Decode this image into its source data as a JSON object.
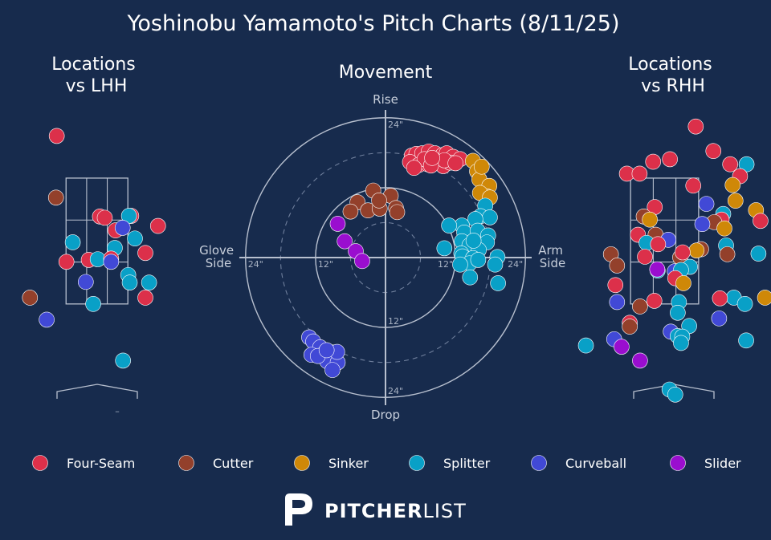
{
  "title": "Yoshinobu Yamamoto's Pitch Charts (8/11/25)",
  "brand": {
    "bold": "PITCHER",
    "light": "LIST"
  },
  "colors": {
    "background": "#172b4d",
    "Four-Seam": "#dc304a",
    "Cutter": "#93402b",
    "Sinker": "#cf8808",
    "Splitter": "#09a0c7",
    "Curveball": "#4149d6",
    "Slider": "#9a0ecf"
  },
  "chart_data": [
    {
      "type": "scatter",
      "title": "Locations\nvs LHH",
      "xlim": [
        -2,
        2.4
      ],
      "ylim": [
        -0.3,
        4.8
      ],
      "zone": {
        "x": [
          -0.83,
          0.83
        ],
        "y": [
          1.5,
          3.5
        ]
      },
      "home_plate_marker": "–",
      "points": [
        {
          "pitch": "Four-Seam",
          "x": -1.08,
          "y": 4.17
        },
        {
          "pitch": "Cutter",
          "x": -1.1,
          "y": 3.19
        },
        {
          "pitch": "Four-Seam",
          "x": 0.08,
          "y": 2.89
        },
        {
          "pitch": "Four-Seam",
          "x": 0.21,
          "y": 2.87
        },
        {
          "pitch": "Four-Seam",
          "x": 0.92,
          "y": 2.9
        },
        {
          "pitch": "Splitter",
          "x": 0.86,
          "y": 2.9
        },
        {
          "pitch": "Four-Seam",
          "x": 1.64,
          "y": 2.74
        },
        {
          "pitch": "Four-Seam",
          "x": 0.5,
          "y": 2.67
        },
        {
          "pitch": "Curveball",
          "x": 0.69,
          "y": 2.71
        },
        {
          "pitch": "Splitter",
          "x": -0.65,
          "y": 2.48
        },
        {
          "pitch": "Splitter",
          "x": 1.02,
          "y": 2.54
        },
        {
          "pitch": "Splitter",
          "x": 0.48,
          "y": 2.39
        },
        {
          "pitch": "Four-Seam",
          "x": 1.3,
          "y": 2.31
        },
        {
          "pitch": "Four-Seam",
          "x": -0.82,
          "y": 2.17
        },
        {
          "pitch": "Four-Seam",
          "x": -0.22,
          "y": 2.2
        },
        {
          "pitch": "Splitter",
          "x": 0.02,
          "y": 2.21
        },
        {
          "pitch": "Four-Seam",
          "x": 0.38,
          "y": 2.22
        },
        {
          "pitch": "Curveball",
          "x": 0.38,
          "y": 2.17
        },
        {
          "pitch": "Splitter",
          "x": 0.84,
          "y": 1.96
        },
        {
          "pitch": "Splitter",
          "x": 1.4,
          "y": 1.84
        },
        {
          "pitch": "Curveball",
          "x": -0.3,
          "y": 1.85
        },
        {
          "pitch": "Splitter",
          "x": 0.88,
          "y": 1.84
        },
        {
          "pitch": "Cutter",
          "x": -1.8,
          "y": 1.6
        },
        {
          "pitch": "Four-Seam",
          "x": 1.3,
          "y": 1.6
        },
        {
          "pitch": "Splitter",
          "x": -0.1,
          "y": 1.5
        },
        {
          "pitch": "Curveball",
          "x": -1.35,
          "y": 1.25
        },
        {
          "pitch": "Splitter",
          "x": 0.7,
          "y": 0.6
        }
      ]
    },
    {
      "type": "scatter",
      "title": "Movement",
      "x_axis_labels": {
        "left": "Glove\nSide",
        "right": "Arm\nSide"
      },
      "y_axis_labels": {
        "top": "Rise",
        "bottom": "Drop"
      },
      "units": "inches",
      "rings": [
        6,
        12,
        18,
        24
      ],
      "tick_labels": {
        "horizontal": [
          "24\"",
          "12\"",
          "12\"",
          "24\""
        ],
        "vertical": [
          "24\"",
          "12\"",
          "24\""
        ]
      },
      "points": [
        {
          "pitch": "Four-Seam",
          "x": 4.5,
          "y": 17.5
        },
        {
          "pitch": "Four-Seam",
          "x": 5.3,
          "y": 17.8
        },
        {
          "pitch": "Four-Seam",
          "x": 6.3,
          "y": 17.9
        },
        {
          "pitch": "Four-Seam",
          "x": 7.4,
          "y": 18.2
        },
        {
          "pitch": "Four-Seam",
          "x": 8.5,
          "y": 17.9
        },
        {
          "pitch": "Four-Seam",
          "x": 9.8,
          "y": 17.6
        },
        {
          "pitch": "Four-Seam",
          "x": 10.5,
          "y": 17.9
        },
        {
          "pitch": "Four-Seam",
          "x": 11.6,
          "y": 17.3
        },
        {
          "pitch": "Four-Seam",
          "x": 12.8,
          "y": 16.9
        },
        {
          "pitch": "Four-Seam",
          "x": 4.2,
          "y": 16.4
        },
        {
          "pitch": "Four-Seam",
          "x": 5.7,
          "y": 15.9
        },
        {
          "pitch": "Four-Seam",
          "x": 7.3,
          "y": 16.0
        },
        {
          "pitch": "Four-Seam",
          "x": 8.7,
          "y": 16.4
        },
        {
          "pitch": "Four-Seam",
          "x": 9.9,
          "y": 15.7
        },
        {
          "pitch": "Four-Seam",
          "x": 11.1,
          "y": 16.3
        },
        {
          "pitch": "Four-Seam",
          "x": 6.7,
          "y": 16.9
        },
        {
          "pitch": "Four-Seam",
          "x": 10.1,
          "y": 16.7
        },
        {
          "pitch": "Four-Seam",
          "x": 12.0,
          "y": 16.2
        },
        {
          "pitch": "Four-Seam",
          "x": 4.9,
          "y": 15.4
        },
        {
          "pitch": "Four-Seam",
          "x": 7.8,
          "y": 15.8
        },
        {
          "pitch": "Four-Seam",
          "x": 8.0,
          "y": 17.1
        },
        {
          "pitch": "Sinker",
          "x": 15.0,
          "y": 16.6
        },
        {
          "pitch": "Sinker",
          "x": 15.7,
          "y": 14.8
        },
        {
          "pitch": "Sinker",
          "x": 16.1,
          "y": 13.4
        },
        {
          "pitch": "Sinker",
          "x": 16.5,
          "y": 15.6
        },
        {
          "pitch": "Sinker",
          "x": 17.8,
          "y": 12.3
        },
        {
          "pitch": "Sinker",
          "x": 17.4,
          "y": 10.5
        },
        {
          "pitch": "Sinker",
          "x": 16.2,
          "y": 11.1
        },
        {
          "pitch": "Sinker",
          "x": 17.9,
          "y": 10.3
        },
        {
          "pitch": "Cutter",
          "x": -2.1,
          "y": 11.5
        },
        {
          "pitch": "Cutter",
          "x": -4.8,
          "y": 9.5
        },
        {
          "pitch": "Cutter",
          "x": -6.0,
          "y": 7.9
        },
        {
          "pitch": "Cutter",
          "x": -3.0,
          "y": 8.1
        },
        {
          "pitch": "Cutter",
          "x": -1.0,
          "y": 8.4
        },
        {
          "pitch": "Cutter",
          "x": 0.9,
          "y": 10.6
        },
        {
          "pitch": "Cutter",
          "x": 1.8,
          "y": 8.5
        },
        {
          "pitch": "Cutter",
          "x": 2.0,
          "y": 7.8
        },
        {
          "pitch": "Cutter",
          "x": -1.1,
          "y": 9.8
        },
        {
          "pitch": "Splitter",
          "x": 17.1,
          "y": 8.9
        },
        {
          "pitch": "Splitter",
          "x": 16.3,
          "y": 7.1
        },
        {
          "pitch": "Splitter",
          "x": 17.9,
          "y": 6.9
        },
        {
          "pitch": "Splitter",
          "x": 15.4,
          "y": 6.6
        },
        {
          "pitch": "Splitter",
          "x": 13.1,
          "y": 5.5
        },
        {
          "pitch": "Splitter",
          "x": 10.9,
          "y": 5.5
        },
        {
          "pitch": "Splitter",
          "x": 13.5,
          "y": 4.3
        },
        {
          "pitch": "Splitter",
          "x": 15.8,
          "y": 4.6
        },
        {
          "pitch": "Splitter",
          "x": 17.6,
          "y": 3.8
        },
        {
          "pitch": "Splitter",
          "x": 17.4,
          "y": 2.6
        },
        {
          "pitch": "Splitter",
          "x": 13.1,
          "y": 2.8
        },
        {
          "pitch": "Splitter",
          "x": 14.4,
          "y": 2.1
        },
        {
          "pitch": "Splitter",
          "x": 16.0,
          "y": 1.3
        },
        {
          "pitch": "Splitter",
          "x": 10.1,
          "y": 1.6
        },
        {
          "pitch": "Splitter",
          "x": 13.0,
          "y": 0.7
        },
        {
          "pitch": "Splitter",
          "x": 13.2,
          "y": 0.2
        },
        {
          "pitch": "Splitter",
          "x": 15.0,
          "y": -0.1
        },
        {
          "pitch": "Splitter",
          "x": 19.2,
          "y": 0.1
        },
        {
          "pitch": "Splitter",
          "x": 14.4,
          "y": -1.0
        },
        {
          "pitch": "Splitter",
          "x": 18.8,
          "y": -1.2
        },
        {
          "pitch": "Splitter",
          "x": 12.8,
          "y": -1.2
        },
        {
          "pitch": "Splitter",
          "x": 15.1,
          "y": 2.9
        },
        {
          "pitch": "Splitter",
          "x": 15.9,
          "y": -0.4
        },
        {
          "pitch": "Splitter",
          "x": 14.5,
          "y": -3.4
        },
        {
          "pitch": "Splitter",
          "x": 19.3,
          "y": -4.4
        },
        {
          "pitch": "Slider",
          "x": -8.2,
          "y": 5.8
        },
        {
          "pitch": "Slider",
          "x": -7.0,
          "y": 2.8
        },
        {
          "pitch": "Slider",
          "x": -5.1,
          "y": 1.1
        },
        {
          "pitch": "Slider",
          "x": -4.0,
          "y": -0.6
        },
        {
          "pitch": "Curveball",
          "x": -13.1,
          "y": -13.7
        },
        {
          "pitch": "Curveball",
          "x": -12.4,
          "y": -14.4
        },
        {
          "pitch": "Curveball",
          "x": -11.2,
          "y": -15.4
        },
        {
          "pitch": "Curveball",
          "x": -12.7,
          "y": -16.7
        },
        {
          "pitch": "Curveball",
          "x": -10.3,
          "y": -16.2
        },
        {
          "pitch": "Curveball",
          "x": -9.0,
          "y": -16.3
        },
        {
          "pitch": "Curveball",
          "x": -10.0,
          "y": -17.8
        },
        {
          "pitch": "Curveball",
          "x": -8.2,
          "y": -18.0
        },
        {
          "pitch": "Curveball",
          "x": -9.1,
          "y": -19.3
        },
        {
          "pitch": "Curveball",
          "x": -11.6,
          "y": -16.9
        },
        {
          "pitch": "Curveball",
          "x": -8.3,
          "y": -16.2
        },
        {
          "pitch": "Curveball",
          "x": -10.1,
          "y": -15.9
        }
      ]
    },
    {
      "type": "scatter",
      "title": "Locations\nvs RHH",
      "xlim": [
        -1.95,
        2.4
      ],
      "ylim": [
        -0.3,
        4.8
      ],
      "zone": {
        "x": [
          -0.83,
          0.83
        ],
        "y": [
          1.5,
          3.5
        ]
      },
      "points": [
        {
          "pitch": "Four-Seam",
          "x": 0.76,
          "y": 4.32
        },
        {
          "pitch": "Four-Seam",
          "x": 1.19,
          "y": 3.93
        },
        {
          "pitch": "Four-Seam",
          "x": -0.28,
          "y": 3.76
        },
        {
          "pitch": "Four-Seam",
          "x": 0.13,
          "y": 3.8
        },
        {
          "pitch": "Four-Seam",
          "x": 1.6,
          "y": 3.72
        },
        {
          "pitch": "Splitter",
          "x": 2.0,
          "y": 3.72
        },
        {
          "pitch": "Four-Seam",
          "x": -0.92,
          "y": 3.57
        },
        {
          "pitch": "Four-Seam",
          "x": -0.61,
          "y": 3.57
        },
        {
          "pitch": "Four-Seam",
          "x": 1.84,
          "y": 3.53
        },
        {
          "pitch": "Four-Seam",
          "x": 0.7,
          "y": 3.38
        },
        {
          "pitch": "Sinker",
          "x": 1.66,
          "y": 3.39
        },
        {
          "pitch": "Curveball",
          "x": 1.02,
          "y": 3.09
        },
        {
          "pitch": "Sinker",
          "x": 1.73,
          "y": 3.14
        },
        {
          "pitch": "Four-Seam",
          "x": -0.24,
          "y": 3.04
        },
        {
          "pitch": "Cutter",
          "x": -0.51,
          "y": 2.89
        },
        {
          "pitch": "Sinker",
          "x": -0.36,
          "y": 2.84
        },
        {
          "pitch": "Splitter",
          "x": 1.43,
          "y": 2.93
        },
        {
          "pitch": "Sinker",
          "x": 2.23,
          "y": 2.99
        },
        {
          "pitch": "Four-Seam",
          "x": 2.34,
          "y": 2.82
        },
        {
          "pitch": "Four-Seam",
          "x": 1.39,
          "y": 2.84
        },
        {
          "pitch": "Cutter",
          "x": 1.21,
          "y": 2.8
        },
        {
          "pitch": "Curveball",
          "x": 0.92,
          "y": 2.77
        },
        {
          "pitch": "Sinker",
          "x": 1.46,
          "y": 2.7
        },
        {
          "pitch": "Four-Seam",
          "x": -0.65,
          "y": 2.6
        },
        {
          "pitch": "Cutter",
          "x": -0.22,
          "y": 2.6
        },
        {
          "pitch": "Splitter",
          "x": -0.44,
          "y": 2.47
        },
        {
          "pitch": "Curveball",
          "x": 0.09,
          "y": 2.52
        },
        {
          "pitch": "Four-Seam",
          "x": -0.16,
          "y": 2.45
        },
        {
          "pitch": "Splitter",
          "x": 1.5,
          "y": 2.43
        },
        {
          "pitch": "Cutter",
          "x": 0.89,
          "y": 2.37
        },
        {
          "pitch": "Sinker",
          "x": 0.78,
          "y": 2.35
        },
        {
          "pitch": "Cutter",
          "x": -1.31,
          "y": 2.29
        },
        {
          "pitch": "Four-Seam",
          "x": -0.48,
          "y": 2.25
        },
        {
          "pitch": "Cutter",
          "x": 0.38,
          "y": 2.24
        },
        {
          "pitch": "Splitter",
          "x": 2.29,
          "y": 2.3
        },
        {
          "pitch": "Cutter",
          "x": 1.53,
          "y": 2.29
        },
        {
          "pitch": "Four-Seam",
          "x": 0.44,
          "y": 2.32
        },
        {
          "pitch": "Cutter",
          "x": -1.16,
          "y": 2.11
        },
        {
          "pitch": "Splitter",
          "x": 0.62,
          "y": 2.09
        },
        {
          "pitch": "Splitter",
          "x": -0.17,
          "y": 2.03
        },
        {
          "pitch": "Slider",
          "x": -0.18,
          "y": 2.05
        },
        {
          "pitch": "Curveball",
          "x": 0.25,
          "y": 2.02
        },
        {
          "pitch": "Splitter",
          "x": 0.4,
          "y": 2.04
        },
        {
          "pitch": "Four-Seam",
          "x": 0.26,
          "y": 1.91
        },
        {
          "pitch": "Sinker",
          "x": 0.46,
          "y": 1.83
        },
        {
          "pitch": "Four-Seam",
          "x": -1.2,
          "y": 1.8
        },
        {
          "pitch": "Splitter",
          "x": 1.69,
          "y": 1.6
        },
        {
          "pitch": "Four-Seam",
          "x": 1.35,
          "y": 1.59
        },
        {
          "pitch": "Splitter",
          "x": 1.96,
          "y": 1.5
        },
        {
          "pitch": "Sinker",
          "x": 2.45,
          "y": 1.6
        },
        {
          "pitch": "Four-Seam",
          "x": -0.25,
          "y": 1.55
        },
        {
          "pitch": "Curveball",
          "x": -1.16,
          "y": 1.53
        },
        {
          "pitch": "Splitter",
          "x": 0.35,
          "y": 1.53
        },
        {
          "pitch": "Cutter",
          "x": -0.6,
          "y": 1.46
        },
        {
          "pitch": "Splitter",
          "x": 0.32,
          "y": 1.36
        },
        {
          "pitch": "Curveball",
          "x": 1.33,
          "y": 1.27
        },
        {
          "pitch": "Four-Seam",
          "x": -0.85,
          "y": 1.2
        },
        {
          "pitch": "Cutter",
          "x": -0.85,
          "y": 1.14
        },
        {
          "pitch": "Splitter",
          "x": 0.6,
          "y": 1.15
        },
        {
          "pitch": "Curveball",
          "x": 0.15,
          "y": 1.06
        },
        {
          "pitch": "Splitter",
          "x": 0.32,
          "y": 0.99
        },
        {
          "pitch": "Splitter",
          "x": 0.43,
          "y": 0.98
        },
        {
          "pitch": "Curveball",
          "x": -1.23,
          "y": 0.94
        },
        {
          "pitch": "Splitter",
          "x": 0.4,
          "y": 0.88
        },
        {
          "pitch": "Splitter",
          "x": 1.99,
          "y": 0.92
        },
        {
          "pitch": "Slider",
          "x": -1.05,
          "y": 0.82
        },
        {
          "pitch": "Splitter",
          "x": -1.92,
          "y": 0.84
        },
        {
          "pitch": "Slider",
          "x": -0.6,
          "y": 0.6
        },
        {
          "pitch": "Splitter",
          "x": 0.12,
          "y": 0.14
        },
        {
          "pitch": "Splitter",
          "x": 0.26,
          "y": 0.06
        }
      ]
    }
  ],
  "legend": [
    "Four-Seam",
    "Cutter",
    "Sinker",
    "Splitter",
    "Curveball",
    "Slider"
  ]
}
